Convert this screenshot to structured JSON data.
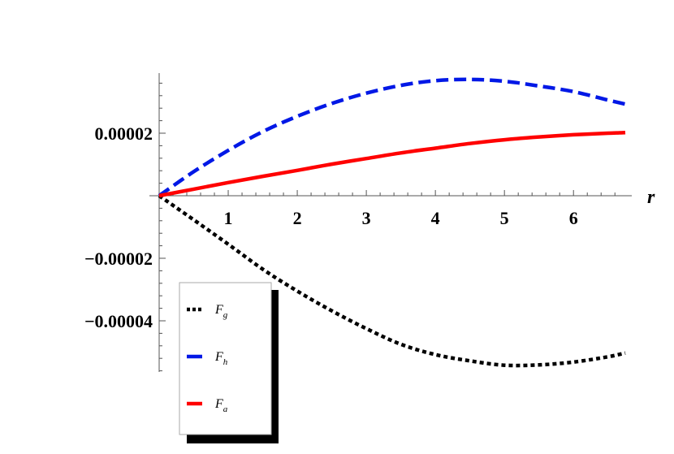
{
  "chart_data": {
    "type": "line",
    "xlabel": "r",
    "ylabel": "",
    "xlim": [
      0,
      6.75
    ],
    "ylim": [
      -5.6e-05,
      3.85e-05
    ],
    "x_ticks": [
      1,
      2,
      3,
      4,
      5,
      6
    ],
    "x_tick_labels": [
      "1",
      "2",
      "3",
      "4",
      "5",
      "6"
    ],
    "y_ticks": [
      2e-05,
      -2e-05,
      -4e-05
    ],
    "y_tick_labels": [
      "0.00002",
      "−0.00002",
      "−0.00004"
    ],
    "grid": false,
    "legend_position": "bottom-left",
    "x": [
      0,
      0.5,
      1,
      1.5,
      2,
      2.5,
      3,
      3.5,
      4,
      4.5,
      5,
      5.5,
      6,
      6.5,
      6.75
    ],
    "series": [
      {
        "name": "F_g",
        "legend_main": "F",
        "legend_sub": "g",
        "color": "#000000",
        "style": "dotted",
        "values": [
          0,
          -7.7e-06,
          -1.55e-05,
          -2.35e-05,
          -3.05e-05,
          -3.68e-05,
          -4.25e-05,
          -4.75e-05,
          -5.08e-05,
          -5.28e-05,
          -5.42e-05,
          -5.41e-05,
          -5.32e-05,
          -5.15e-05,
          -5.03e-05
        ]
      },
      {
        "name": "F_h",
        "legend_main": "F",
        "legend_sub": "h",
        "color": "#0018e6",
        "style": "dashed",
        "values": [
          0,
          7.7e-06,
          1.45e-05,
          2.05e-05,
          2.54e-05,
          2.95e-05,
          3.28e-05,
          3.53e-05,
          3.68e-05,
          3.72e-05,
          3.66e-05,
          3.51e-05,
          3.33e-05,
          3.06e-05,
          2.93e-05
        ]
      },
      {
        "name": "F_a",
        "legend_main": "F",
        "legend_sub": "a",
        "color": "#ff0000",
        "style": "solid",
        "values": [
          0,
          2.1e-06,
          4.2e-06,
          6.2e-06,
          8.1e-06,
          1.01e-05,
          1.19e-05,
          1.37e-05,
          1.52e-05,
          1.67e-05,
          1.79e-05,
          1.88e-05,
          1.95e-05,
          2e-05,
          2.02e-05
        ]
      }
    ]
  }
}
